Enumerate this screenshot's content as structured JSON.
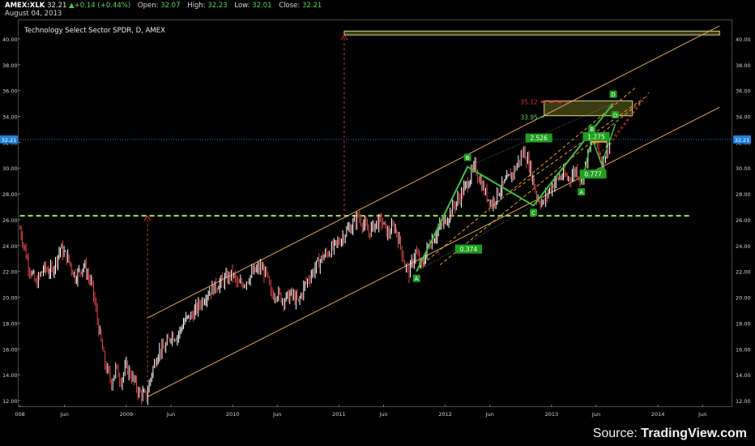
{
  "header": {
    "symbol": "AMEX:XLK",
    "last": "32.21",
    "change": "+0.14 (+0.44%)",
    "open_label": "Open:",
    "open": "32.07",
    "high_label": "High:",
    "high": "32.23",
    "low_label": "Low:",
    "low": "32.01",
    "close_label": "Close:",
    "close": "32.21",
    "date": "August 04, 2013"
  },
  "footer": {
    "source_prefix": "Source: ",
    "source_brand": "TradingView.com"
  },
  "colors": {
    "background": "#000000",
    "candle_up": "#ffffff",
    "candle_down": "#e04545",
    "channel": "#e3a35a",
    "pattern": "#3ec23e",
    "support": "#a9e45a",
    "target_red": "#e03030",
    "zone_fill": "#4a4a18",
    "zone_border": "#d8d880",
    "price_line": "#1e7fd8",
    "badge_bg": "#1e9f1e"
  },
  "chart_data": {
    "type": "candlestick",
    "title": "Technology Select Sector SPDR, D, AMEX",
    "ylim": [
      11.5,
      41.5
    ],
    "y_ticks": [
      "12.00",
      "14.00",
      "16.00",
      "18.00",
      "20.00",
      "22.00",
      "24.00",
      "26.00",
      "28.00",
      "30.00",
      "32.00",
      "34.00",
      "36.00",
      "38.00",
      "40.00"
    ],
    "x_ticks": [
      {
        "label": "008",
        "t": 2008.0
      },
      {
        "label": "Jun",
        "t": 2008.42
      },
      {
        "label": "2009",
        "t": 2009.0
      },
      {
        "label": "Jun",
        "t": 2009.42
      },
      {
        "label": "2010",
        "t": 2010.0
      },
      {
        "label": "Jun",
        "t": 2010.42
      },
      {
        "label": "2011",
        "t": 2011.0
      },
      {
        "label": "Jun",
        "t": 2011.42
      },
      {
        "label": "2012",
        "t": 2012.0
      },
      {
        "label": "Jun",
        "t": 2012.42
      },
      {
        "label": "2013",
        "t": 2013.0
      },
      {
        "label": "Jun",
        "t": 2013.42
      },
      {
        "label": "2014",
        "t": 2014.0
      },
      {
        "label": "Jun",
        "t": 2014.42
      }
    ],
    "current_price": 32.21,
    "current_price_label": "32.21",
    "price_path": [
      [
        2008.0,
        25.3
      ],
      [
        2008.08,
        22.5
      ],
      [
        2008.15,
        21.0
      ],
      [
        2008.22,
        22.2
      ],
      [
        2008.3,
        22.0
      ],
      [
        2008.38,
        23.8
      ],
      [
        2008.45,
        23.0
      ],
      [
        2008.52,
        21.6
      ],
      [
        2008.6,
        22.5
      ],
      [
        2008.68,
        20.8
      ],
      [
        2008.74,
        17.6
      ],
      [
        2008.8,
        14.8
      ],
      [
        2008.86,
        13.4
      ],
      [
        2008.9,
        14.5
      ],
      [
        2008.95,
        13.6
      ],
      [
        2009.0,
        14.6
      ],
      [
        2009.05,
        13.9
      ],
      [
        2009.12,
        12.6
      ],
      [
        2009.19,
        12.3
      ],
      [
        2009.24,
        14.2
      ],
      [
        2009.3,
        15.8
      ],
      [
        2009.36,
        16.0
      ],
      [
        2009.42,
        17.1
      ],
      [
        2009.48,
        17.0
      ],
      [
        2009.55,
        18.2
      ],
      [
        2009.62,
        18.6
      ],
      [
        2009.7,
        19.6
      ],
      [
        2009.76,
        20.3
      ],
      [
        2009.82,
        20.7
      ],
      [
        2009.88,
        21.1
      ],
      [
        2009.95,
        21.5
      ],
      [
        2010.0,
        21.8
      ],
      [
        2010.05,
        20.9
      ],
      [
        2010.12,
        21.2
      ],
      [
        2010.18,
        21.8
      ],
      [
        2010.26,
        22.3
      ],
      [
        2010.32,
        21.7
      ],
      [
        2010.36,
        20.2
      ],
      [
        2010.42,
        20.3
      ],
      [
        2010.48,
        19.8
      ],
      [
        2010.55,
        20.2
      ],
      [
        2010.62,
        19.6
      ],
      [
        2010.68,
        21.0
      ],
      [
        2010.74,
        21.8
      ],
      [
        2010.8,
        22.6
      ],
      [
        2010.86,
        23.2
      ],
      [
        2010.92,
        23.6
      ],
      [
        2011.0,
        24.3
      ],
      [
        2011.06,
        25.0
      ],
      [
        2011.12,
        25.5
      ],
      [
        2011.18,
        26.3
      ],
      [
        2011.22,
        25.8
      ],
      [
        2011.28,
        25.0
      ],
      [
        2011.34,
        25.7
      ],
      [
        2011.4,
        25.9
      ],
      [
        2011.46,
        24.9
      ],
      [
        2011.52,
        25.5
      ],
      [
        2011.58,
        24.0
      ],
      [
        2011.62,
        22.5
      ],
      [
        2011.66,
        21.9
      ],
      [
        2011.72,
        23.5
      ],
      [
        2011.78,
        22.3
      ],
      [
        2011.84,
        24.0
      ],
      [
        2011.9,
        24.7
      ],
      [
        2011.96,
        25.6
      ],
      [
        2012.0,
        25.8
      ],
      [
        2012.08,
        27.1
      ],
      [
        2012.14,
        27.8
      ],
      [
        2012.2,
        28.7
      ],
      [
        2012.28,
        30.1
      ],
      [
        2012.33,
        29.0
      ],
      [
        2012.38,
        28.0
      ],
      [
        2012.44,
        27.2
      ],
      [
        2012.5,
        28.2
      ],
      [
        2012.58,
        29.0
      ],
      [
        2012.65,
        29.8
      ],
      [
        2012.7,
        30.7
      ],
      [
        2012.74,
        31.3
      ],
      [
        2012.8,
        30.0
      ],
      [
        2012.86,
        27.8
      ],
      [
        2012.92,
        27.2
      ],
      [
        2012.97,
        28.2
      ],
      [
        2013.03,
        29.0
      ],
      [
        2013.1,
        29.4
      ],
      [
        2013.17,
        29.2
      ],
      [
        2013.23,
        29.9
      ],
      [
        2013.28,
        29.0
      ],
      [
        2013.33,
        30.6
      ],
      [
        2013.38,
        32.2
      ],
      [
        2013.43,
        31.8
      ],
      [
        2013.47,
        30.2
      ],
      [
        2013.52,
        31.4
      ],
      [
        2013.56,
        32.21
      ]
    ],
    "annotations": [
      {
        "type": "resistance_line",
        "price": 26.3,
        "t0": 2008.0,
        "t1": 2014.3
      },
      {
        "type": "target_zone",
        "price_low": 40.3,
        "price_high": 40.6,
        "t0": 2011.05,
        "t1": 2014.58
      },
      {
        "type": "target_zone",
        "price_low": 34.05,
        "price_high": 35.2,
        "t0": 2012.93,
        "t1": 2013.76
      },
      {
        "type": "measured_move",
        "t": 2009.2,
        "from": 12.3,
        "to": 26.3
      },
      {
        "type": "measured_move",
        "t": 2011.05,
        "from": 26.3,
        "to": 40.3
      },
      {
        "type": "target_level",
        "label": "35.12",
        "price": 35.12
      },
      {
        "type": "target_level",
        "label": "33.95",
        "price": 33.95
      }
    ],
    "channels": [
      {
        "name": "upper",
        "from": [
          2009.2,
          18.4
        ],
        "to": [
          2014.58,
          41.0
        ]
      },
      {
        "name": "lower",
        "from": [
          2009.2,
          12.3
        ],
        "to": [
          2014.58,
          34.7
        ]
      }
    ],
    "abcd_pattern": [
      {
        "label": "A",
        "t": 2011.73,
        "price": 22.0
      },
      {
        "label": "B",
        "t": 2012.21,
        "price": 30.1
      },
      {
        "label": "C",
        "t": 2012.83,
        "price": 27.1
      },
      {
        "label": "D",
        "t": 2013.58,
        "price": 35.0
      }
    ],
    "small_abcd": [
      {
        "label": "A",
        "t": 2013.28,
        "price": 28.7
      },
      {
        "label": "B",
        "t": 2013.38,
        "price": 32.3
      },
      {
        "label": "C",
        "t": 2013.47,
        "price": 30.3
      },
      {
        "label": "D",
        "t": 2013.6,
        "price": 33.4
      }
    ],
    "ratios": [
      {
        "label": "2.526",
        "t": 2012.88,
        "price": 32.3
      },
      {
        "label": "0.374",
        "t": 2012.22,
        "price": 23.7
      },
      {
        "label": "1.275",
        "t": 2013.42,
        "price": 32.4
      },
      {
        "label": "0.777",
        "t": 2013.39,
        "price": 29.5
      }
    ]
  }
}
